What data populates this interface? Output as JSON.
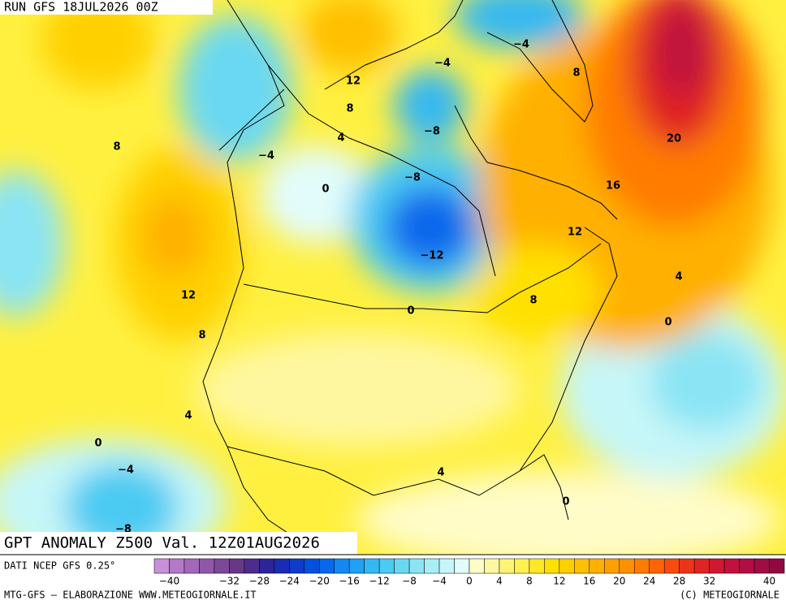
{
  "header": {
    "run": "RUN GFS 18JUL2026 00Z"
  },
  "map": {
    "title": "GPT ANOMALY Z500 Val. 12Z01AUG2026",
    "labels": [
      {
        "value": 12,
        "label": "12"
      },
      {
        "value": 8,
        "label": "8"
      },
      {
        "value": 4,
        "label": "4"
      },
      {
        "value": -4,
        "label": "−4"
      },
      {
        "value": -4,
        "label": "−4"
      },
      {
        "value": 8,
        "label": "8"
      },
      {
        "value": -8,
        "label": "−8"
      },
      {
        "value": -4,
        "label": "−4"
      },
      {
        "value": 8,
        "label": "8"
      },
      {
        "value": 20,
        "label": "20"
      },
      {
        "value": -8,
        "label": "−8"
      },
      {
        "value": 0,
        "label": "0"
      },
      {
        "value": 16,
        "label": "16"
      },
      {
        "value": 12,
        "label": "12"
      },
      {
        "value": -12,
        "label": "−12"
      },
      {
        "value": 4,
        "label": "4"
      },
      {
        "value": 12,
        "label": "12"
      },
      {
        "value": 8,
        "label": "8"
      },
      {
        "value": 0,
        "label": "0"
      },
      {
        "value": 0,
        "label": "0"
      },
      {
        "value": 8,
        "label": "8"
      },
      {
        "value": 4,
        "label": "4"
      },
      {
        "value": 0,
        "label": "0"
      },
      {
        "value": -4,
        "label": "−4"
      },
      {
        "value": 4,
        "label": "4"
      },
      {
        "value": 0,
        "label": "0"
      },
      {
        "value": -8,
        "label": "−8"
      }
    ]
  },
  "colorbar": {
    "source": "DATI NCEP GFS 0.25°",
    "range": [
      -42,
      42
    ],
    "step": 2,
    "colors": [
      "#c890d8",
      "#b478c8",
      "#a468b8",
      "#9058a8",
      "#7c4898",
      "#683888",
      "#4c2c8c",
      "#2c2498",
      "#1a2cb4",
      "#0c3cc8",
      "#0450dc",
      "#0868ec",
      "#1488f0",
      "#22a0f2",
      "#34b8f2",
      "#4ccaf2",
      "#6ad8f2",
      "#8ae4f4",
      "#a8eef6",
      "#c6f6f8",
      "#e2fcfc",
      "#fffcc8",
      "#fff8a0",
      "#fff478",
      "#fff050",
      "#ffe828",
      "#ffe000",
      "#ffd000",
      "#ffc000",
      "#ffb000",
      "#ffa000",
      "#ff9000",
      "#ff7c00",
      "#ff6400",
      "#f84c0c",
      "#ec3418",
      "#e02424",
      "#d01830",
      "#c0123c",
      "#b00e44",
      "#a00c44",
      "#900a40"
    ],
    "ticks": [
      {
        "value": -40,
        "label": "−40"
      },
      {
        "value": -32,
        "label": "−32"
      },
      {
        "value": -28,
        "label": "−28"
      },
      {
        "value": -24,
        "label": "−24"
      },
      {
        "value": -20,
        "label": "−20"
      },
      {
        "value": -16,
        "label": "−16"
      },
      {
        "value": -12,
        "label": "−12"
      },
      {
        "value": -8,
        "label": "−8"
      },
      {
        "value": -4,
        "label": "−4"
      },
      0,
      4,
      8,
      12,
      16,
      20,
      24,
      28,
      32,
      40
    ]
  },
  "footer": {
    "left": "MTG-GFS — ELABORAZIONE WWW.METEOGIORNALE.IT",
    "right": "(C) METEOGIORNALE"
  }
}
